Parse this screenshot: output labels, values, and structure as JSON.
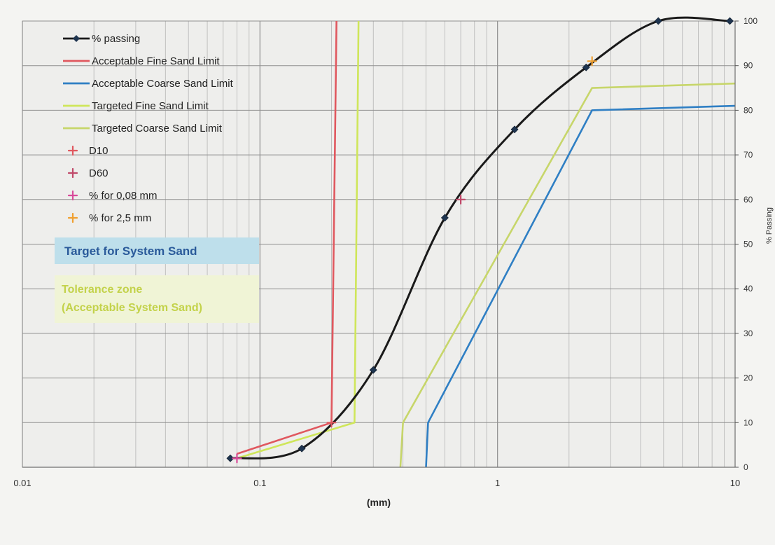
{
  "chart_data": {
    "type": "line",
    "x_scale": "log",
    "xlim": [
      0.01,
      10
    ],
    "ylim": [
      0,
      100
    ],
    "xlabel": "(mm)",
    "ylabel": "% Passing",
    "x_ticks": [
      "0.01",
      "0.1",
      "1",
      "10"
    ],
    "y_ticks": [
      "0",
      "10",
      "20",
      "30",
      "40",
      "50",
      "60",
      "70",
      "80",
      "90",
      "100"
    ],
    "grid": true,
    "legend_position": "top-left",
    "series": [
      {
        "name": "% passing",
        "color": "#1a1a1a",
        "marker": "diamond",
        "marker_color": "#1f3550",
        "points": [
          [
            0.075,
            2
          ],
          [
            0.15,
            4.2
          ],
          [
            0.3,
            21.8
          ],
          [
            0.6,
            55.9
          ],
          [
            1.18,
            75.7
          ],
          [
            2.36,
            89.6
          ],
          [
            4.75,
            100
          ],
          [
            9.5,
            100
          ]
        ]
      },
      {
        "name": "Acceptable Fine Sand Limit",
        "color": "#e0585f",
        "points": [
          [
            0.08,
            3
          ],
          [
            0.2,
            10
          ],
          [
            0.21,
            100
          ]
        ]
      },
      {
        "name": "Acceptable Coarse Sand Limit",
        "color": "#2f7fc4",
        "points": [
          [
            0.5,
            0
          ],
          [
            0.51,
            10
          ],
          [
            2.5,
            80
          ],
          [
            10,
            81
          ]
        ]
      },
      {
        "name": "Targeted Fine Sand Limit",
        "color": "#cfe65a",
        "points": [
          [
            0.08,
            2
          ],
          [
            0.25,
            10
          ],
          [
            0.26,
            100
          ]
        ]
      },
      {
        "name": "Targeted Coarse Sand Limit",
        "color": "#c7d66a",
        "points": [
          [
            0.39,
            0
          ],
          [
            0.4,
            10
          ],
          [
            2.5,
            85
          ],
          [
            10,
            86
          ]
        ]
      }
    ],
    "markers": [
      {
        "name": "D10",
        "color": "#e0585f",
        "point": [
          0.2,
          10
        ]
      },
      {
        "name": "D60",
        "color": "#c04a6a",
        "point": [
          0.7,
          60
        ]
      },
      {
        "name": "% for 0,08 mm",
        "color": "#d84a9a",
        "point": [
          0.08,
          2
        ]
      },
      {
        "name": "% for 2,5 mm",
        "color": "#f0a030",
        "point": [
          2.5,
          91
        ]
      }
    ],
    "annotations": [
      {
        "text": "Target for System Sand",
        "fill": "#bedfeb",
        "color": "#2a5a9a"
      },
      {
        "text_lines": [
          "Tolerance zone",
          "(Acceptable System Sand)"
        ],
        "fill": "#f0f4d6",
        "color": "#c3d24a"
      }
    ]
  }
}
